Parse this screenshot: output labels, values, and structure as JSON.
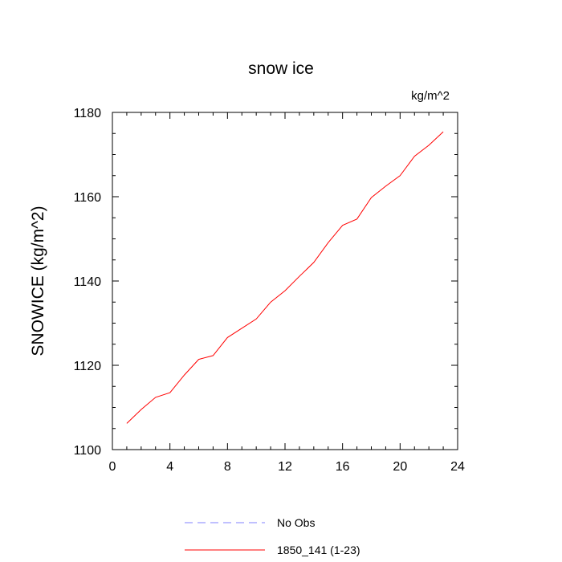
{
  "chart_data": {
    "type": "line",
    "title": "snow ice",
    "units_label": "kg/m^2",
    "ylabel": "SNOWICE  (kg/m^2)",
    "xlabel": "",
    "xlim": [
      0,
      24
    ],
    "ylim": [
      1100,
      1180
    ],
    "x_ticks": [
      0,
      4,
      8,
      12,
      16,
      20,
      24
    ],
    "y_ticks": [
      1100,
      1120,
      1140,
      1160,
      1180
    ],
    "grid": false,
    "legend_position": "bottom",
    "legend": [
      {
        "label": "No Obs",
        "color": "#8080ff",
        "style": "dashed"
      },
      {
        "label": "1850_141 (1-23)",
        "color": "#ff0000",
        "style": "solid"
      }
    ],
    "series": [
      {
        "name": "1850_141 (1-23)",
        "color": "#ff0000",
        "x": [
          1,
          2,
          3,
          4,
          5,
          6,
          7,
          8,
          9,
          10,
          11,
          12,
          13,
          14,
          15,
          16,
          17,
          18,
          19,
          20,
          21,
          22,
          23
        ],
        "y": [
          1106.2,
          1109.5,
          1112.4,
          1113.5,
          1117.7,
          1121.4,
          1122.3,
          1126.6,
          1128.8,
          1131.0,
          1135.0,
          1137.7,
          1141.1,
          1144.4,
          1149.1,
          1153.2,
          1154.7,
          1159.8,
          1162.5,
          1165.0,
          1169.6,
          1172.2,
          1175.4
        ]
      }
    ]
  }
}
